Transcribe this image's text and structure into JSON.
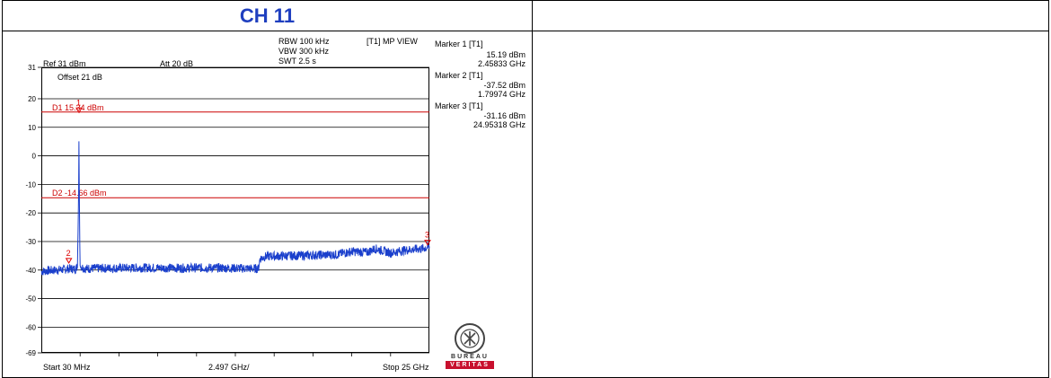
{
  "page": {
    "title": "CH 11"
  },
  "analyzer": {
    "ref_label": "Ref 31 dBm",
    "att_label": "Att 20 dB",
    "offset_label": "Offset 21 dB",
    "rbw": "RBW 100 kHz",
    "vbw": "VBW 300 kHz",
    "swt": "SWT 2.5 s",
    "view": "[T1] MP VIEW",
    "start_label": "Start 30 MHz",
    "span_label": "2.497 GHz/",
    "stop_label": "Stop 25 GHz"
  },
  "markers": [
    {
      "title": "Marker 1 [T1]",
      "level": "15.19 dBm",
      "freq": "2.45833 GHz"
    },
    {
      "title": "Marker 2 [T1]",
      "level": "-37.52 dBm",
      "freq": "1.79974 GHz"
    },
    {
      "title": "Marker 3 [T1]",
      "level": "-31.16 dBm",
      "freq": "24.95318 GHz"
    }
  ],
  "logo": {
    "top": "BUREAU",
    "bottom": "VERITAS"
  },
  "colors": {
    "title": "#1f3fbf",
    "trace": "#1a3fcc",
    "limit_line": "#cc0000",
    "marker": "#dd0000",
    "logo_red": "#c8102e"
  },
  "chart_data": {
    "type": "line",
    "x_unit": "GHz",
    "xlim": [
      0.03,
      25.0
    ],
    "ylim": [
      -69,
      31
    ],
    "y_ticks": [
      31,
      20,
      10,
      0,
      -10,
      -20,
      -30,
      -40,
      -50,
      -60,
      -69
    ],
    "y_tick_labels": [
      "31",
      "20",
      "10",
      "0",
      "-10",
      "-20",
      "-30",
      "-40",
      "-50",
      "-60",
      "-69"
    ],
    "grid": true,
    "display_lines": [
      {
        "label": "D1 15.34 dBm",
        "y": 15.34
      },
      {
        "label": "D2 -14.66 dBm",
        "y": -14.66
      }
    ],
    "marker_points": [
      {
        "label": "1",
        "x": 2.45833,
        "y": 15.19
      },
      {
        "label": "2",
        "x": 1.79974,
        "y": -37.52
      },
      {
        "label": "3",
        "x": 24.95318,
        "y": -31.16
      }
    ],
    "series": [
      {
        "values": [
          [
            0.03,
            -40.5
          ],
          [
            0.5,
            -40.2
          ],
          [
            1.0,
            -40.0
          ],
          [
            1.5,
            -39.8
          ],
          [
            1.8,
            -39.5
          ],
          [
            2.2,
            -39.6
          ],
          [
            2.35,
            -39.0
          ],
          [
            2.4,
            -25.0
          ],
          [
            2.44,
            -8.0
          ],
          [
            2.458,
            15.19
          ],
          [
            2.47,
            -10.0
          ],
          [
            2.52,
            -38.5
          ],
          [
            2.8,
            -39.5
          ],
          [
            3.5,
            -39.4
          ],
          [
            5.0,
            -39.3
          ],
          [
            7.0,
            -39.2
          ],
          [
            9.0,
            -39.3
          ],
          [
            11.0,
            -39.2
          ],
          [
            13.0,
            -39.4
          ],
          [
            14.0,
            -39.5
          ],
          [
            14.1,
            -36.0
          ],
          [
            14.5,
            -35.2
          ],
          [
            16.0,
            -35.0
          ],
          [
            17.5,
            -34.8
          ],
          [
            19.0,
            -34.6
          ],
          [
            20.0,
            -33.5
          ],
          [
            21.0,
            -33.8
          ],
          [
            21.5,
            -32.5
          ],
          [
            22.5,
            -34.0
          ],
          [
            23.5,
            -33.0
          ],
          [
            24.5,
            -32.5
          ],
          [
            25.0,
            -32.0
          ]
        ]
      }
    ]
  }
}
